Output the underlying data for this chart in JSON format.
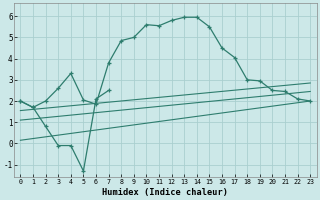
{
  "xlabel": "Humidex (Indice chaleur)",
  "bg_color": "#cce8e8",
  "line_color": "#2e7d6e",
  "grid_color": "#aacfcf",
  "xlim": [
    -0.5,
    23.5
  ],
  "ylim": [
    -1.6,
    6.6
  ],
  "xticks": [
    0,
    1,
    2,
    3,
    4,
    5,
    6,
    7,
    8,
    9,
    10,
    11,
    12,
    13,
    14,
    15,
    16,
    17,
    18,
    19,
    20,
    21,
    22,
    23
  ],
  "yticks": [
    -1,
    0,
    1,
    2,
    3,
    4,
    5,
    6
  ],
  "main_x": [
    0,
    1,
    2,
    3,
    4,
    5,
    6,
    7,
    8,
    9,
    10,
    11,
    12,
    13,
    14,
    15,
    16,
    17,
    18,
    19,
    20,
    21,
    22,
    23
  ],
  "main_y": [
    2.0,
    1.7,
    2.0,
    2.6,
    3.3,
    2.05,
    1.85,
    3.8,
    4.85,
    5.0,
    5.6,
    5.55,
    5.8,
    5.95,
    5.95,
    5.5,
    4.5,
    4.05,
    3.0,
    2.95,
    2.5,
    2.45,
    2.1,
    2.0
  ],
  "zigzag_x": [
    0,
    1,
    2,
    3,
    4,
    5,
    6,
    7
  ],
  "zigzag_y": [
    2.0,
    1.7,
    0.8,
    -0.1,
    -0.1,
    -1.3,
    2.1,
    2.5
  ],
  "reg_lines": [
    {
      "x0": 0,
      "y0": 1.55,
      "x1": 23,
      "y1": 2.85
    },
    {
      "x0": 0,
      "y0": 1.1,
      "x1": 23,
      "y1": 2.45
    },
    {
      "x0": 0,
      "y0": 0.15,
      "x1": 23,
      "y1": 2.0
    }
  ]
}
